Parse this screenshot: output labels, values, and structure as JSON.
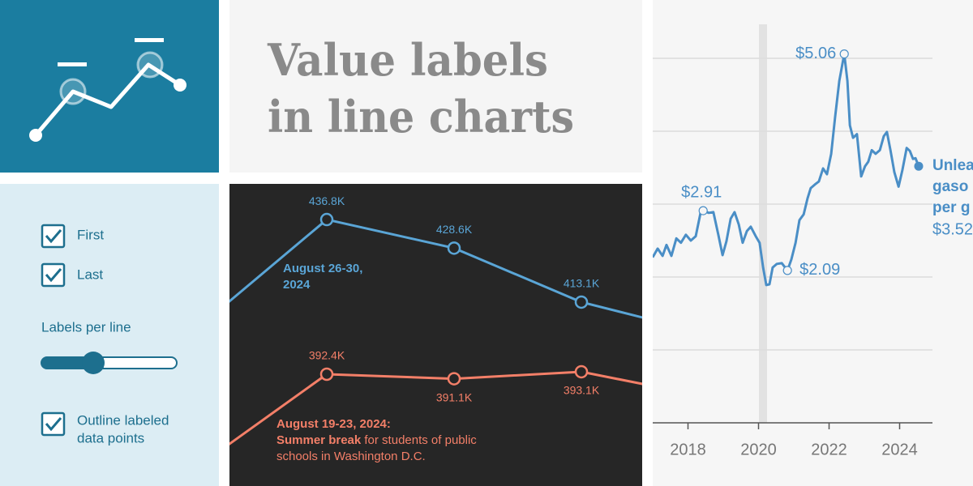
{
  "header": {
    "title_lines": [
      "Value labels",
      "in line charts"
    ]
  },
  "controls": {
    "checkboxes": [
      {
        "label": "First",
        "checked": true
      },
      {
        "label": "Last",
        "checked": true
      }
    ],
    "slider_label": "Labels per line",
    "outline": {
      "label_lines": [
        "Outline labeled",
        "data points"
      ],
      "checked": true
    }
  },
  "chart_data": [
    {
      "type": "line",
      "categories": [
        null,
        null,
        null,
        null,
        null
      ],
      "ylim": [
        360,
        445
      ],
      "series": [
        {
          "color": "#5aa5d6",
          "values": [
            406.1,
            436.8,
            428.6,
            413.1,
            403.9
          ],
          "value_labels": [
            null,
            "436.8K",
            "428.6K",
            "413.1K",
            null
          ],
          "annotation": [
            [
              {
                "text": "August 26-30,",
                "bold": true
              }
            ],
            [
              {
                "text": "2024",
                "bold": true
              }
            ]
          ]
        },
        {
          "color": "#f37f68",
          "values": [
            366.2,
            392.4,
            391.1,
            393.1,
            385.8
          ],
          "value_labels": [
            null,
            "392.4K",
            "391.1K",
            "393.1K",
            null
          ],
          "annotation": [
            [
              {
                "text": "August 19-23, 2024:",
                "bold": true
              }
            ],
            [
              {
                "text": "Summer break",
                "bold": true
              },
              {
                "text": " for students of public",
                "bold": false
              }
            ],
            [
              {
                "text": "schools in Washington D.C.",
                "bold": false
              }
            ]
          ]
        }
      ]
    },
    {
      "type": "line",
      "x": [
        2017.0,
        2017.14,
        2017.28,
        2017.39,
        2017.53,
        2017.67,
        2017.8,
        2017.94,
        2018.08,
        2018.22,
        2018.36,
        2018.43,
        2018.59,
        2018.72,
        2018.86,
        2018.98,
        2019.09,
        2019.21,
        2019.32,
        2019.44,
        2019.55,
        2019.67,
        2019.78,
        2019.92,
        2020.03,
        2020.13,
        2020.22,
        2020.31,
        2020.4,
        2020.52,
        2020.66,
        2020.82,
        2020.93,
        2021.05,
        2021.16,
        2021.28,
        2021.39,
        2021.48,
        2021.6,
        2021.71,
        2021.83,
        2021.94,
        2022.06,
        2022.17,
        2022.29,
        2022.43,
        2022.52,
        2022.59,
        2022.68,
        2022.79,
        2022.91,
        2023.02,
        2023.11,
        2023.21,
        2023.32,
        2023.44,
        2023.55,
        2023.64,
        2023.74,
        2023.85,
        2023.97,
        2024.08,
        2024.2,
        2024.29,
        2024.38,
        2024.45,
        2024.54
      ],
      "xlim": [
        2017,
        2025
      ],
      "xticks": [
        2018,
        2020,
        2022,
        2024
      ],
      "ylim": [
        0,
        5.8
      ],
      "yticks": [
        0,
        1,
        2,
        3,
        4,
        5
      ],
      "grid": true,
      "series": [
        {
          "color": "#4a8ec6",
          "label_lines": [
            "Unlea",
            "gaso",
            "per g"
          ],
          "values": [
            2.27,
            2.39,
            2.29,
            2.44,
            2.29,
            2.53,
            2.47,
            2.58,
            2.5,
            2.56,
            2.89,
            2.91,
            2.88,
            2.89,
            2.58,
            2.3,
            2.49,
            2.8,
            2.89,
            2.72,
            2.47,
            2.63,
            2.69,
            2.56,
            2.47,
            2.13,
            1.89,
            1.9,
            2.13,
            2.18,
            2.19,
            2.09,
            2.24,
            2.47,
            2.78,
            2.86,
            3.08,
            3.22,
            3.27,
            3.31,
            3.49,
            3.41,
            3.69,
            4.19,
            4.69,
            5.06,
            4.69,
            4.08,
            3.91,
            3.96,
            3.38,
            3.52,
            3.58,
            3.74,
            3.69,
            3.74,
            3.93,
            3.99,
            3.74,
            3.44,
            3.24,
            3.47,
            3.77,
            3.73,
            3.62,
            3.63,
            3.52
          ],
          "value_labels": [
            null,
            null,
            null,
            null,
            null,
            null,
            null,
            null,
            null,
            null,
            null,
            "$2.91",
            null,
            null,
            null,
            null,
            null,
            null,
            null,
            null,
            null,
            null,
            null,
            null,
            null,
            null,
            null,
            null,
            null,
            null,
            null,
            "$2.09",
            null,
            null,
            null,
            null,
            null,
            null,
            null,
            null,
            null,
            null,
            null,
            null,
            null,
            "$5.06",
            null,
            null,
            null,
            null,
            null,
            null,
            null,
            null,
            null,
            null,
            null,
            null,
            null,
            null,
            null,
            null,
            null,
            null,
            null,
            null,
            "$3.52"
          ]
        }
      ]
    }
  ]
}
